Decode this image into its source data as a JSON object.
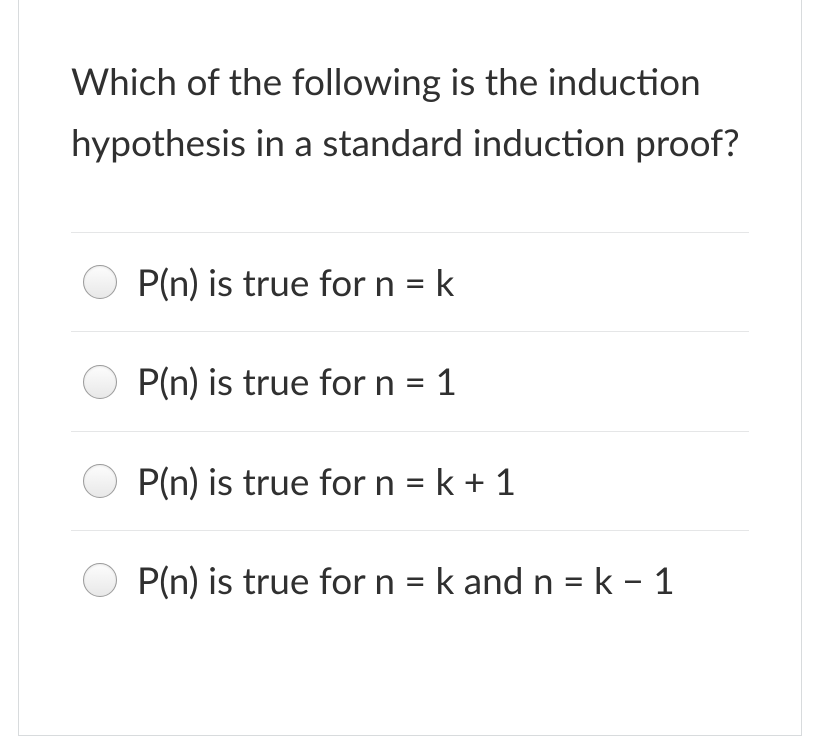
{
  "question": {
    "text": "Which of the following is the induction hypothesis in a standard induction proof?"
  },
  "options": [
    {
      "label": "P(n) is true for n = k"
    },
    {
      "label": "P(n) is true for n = 1"
    },
    {
      "label": "P(n) is true for n = k + 1"
    },
    {
      "label": "P(n) is true for n = k and n = k − 1"
    }
  ],
  "colors": {
    "text": "#303030",
    "border": "#d8dbdd",
    "divider": "#e5e6e7",
    "radio_border": "#9b9b9b",
    "background": "#ffffff"
  },
  "typography": {
    "question_fontsize": 37,
    "option_fontsize": 37,
    "font_family": "Lato, Helvetica Neue, Helvetica, Arial, sans-serif"
  }
}
